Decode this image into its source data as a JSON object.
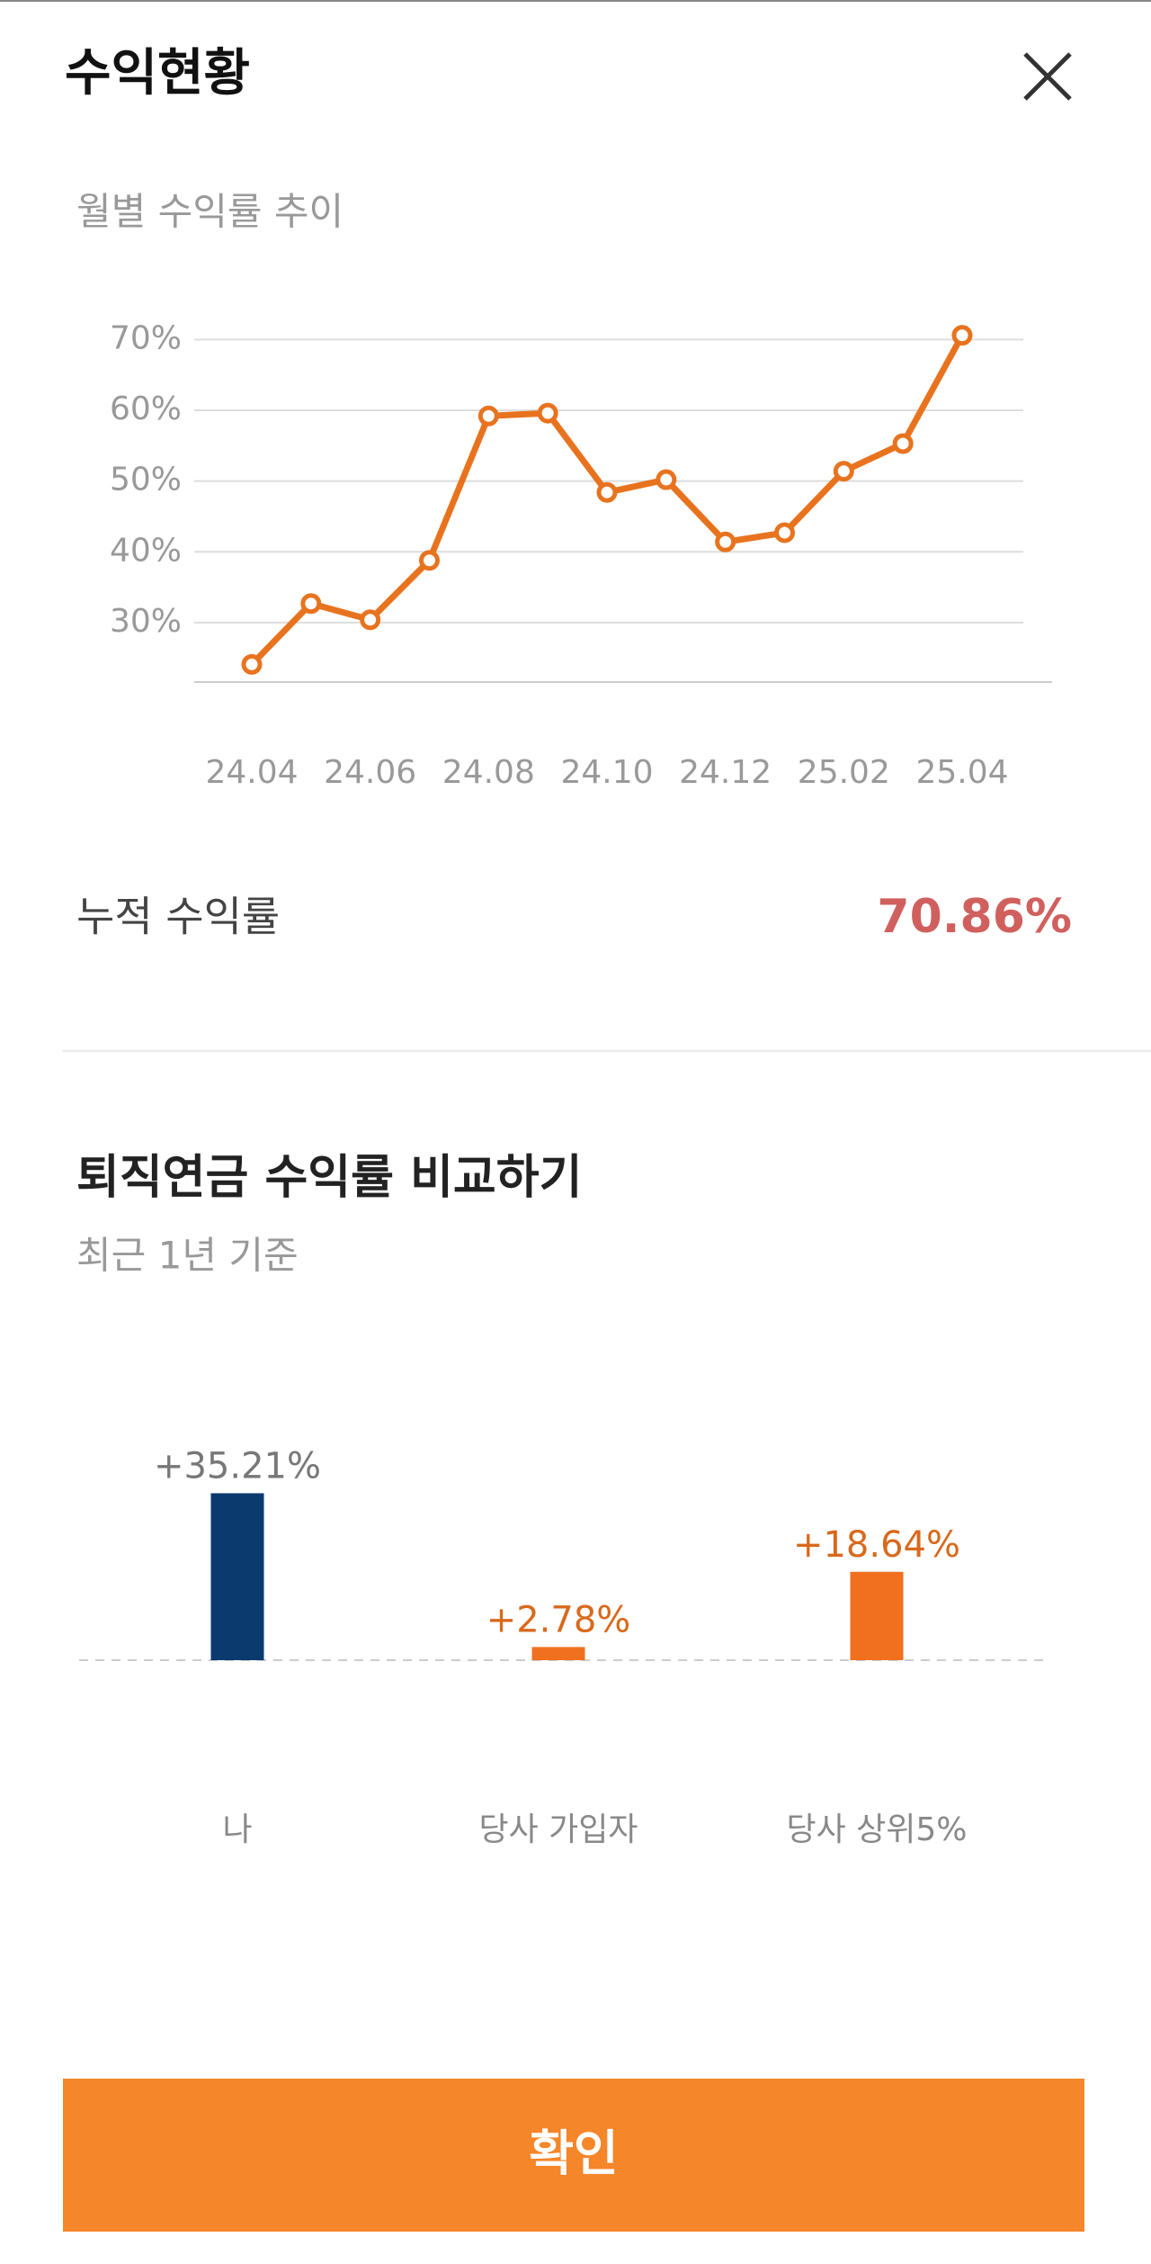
{
  "header": {
    "title": "수익현황"
  },
  "chart_data": [
    {
      "type": "line",
      "title": "월별 수익률 추이",
      "categories": [
        "24.04",
        null,
        "24.06",
        null,
        "24.08",
        null,
        "24.10",
        null,
        "24.12",
        null,
        "25.02",
        null,
        "25.04"
      ],
      "values": [
        24.1,
        32.7,
        30.4,
        38.8,
        59.2,
        59.6,
        48.4,
        50.2,
        41.4,
        42.7,
        51.4,
        55.3,
        70.6
      ],
      "color": "#e8731f",
      "ylim": [
        21.6,
        75
      ],
      "yticks": [
        {
          "value": 30,
          "label": "30%"
        },
        {
          "value": 40,
          "label": "40%"
        },
        {
          "value": 50,
          "label": "50%"
        },
        {
          "value": 60,
          "label": "60%"
        },
        {
          "value": 70,
          "label": "70%"
        }
      ],
      "grid": true
    },
    {
      "type": "bar",
      "title": "퇴직연금 수익률 비교하기",
      "subtitle": "최근 1년 기준",
      "categories": [
        "나",
        "당사 가입자",
        "당사 상위5%"
      ],
      "values": [
        35.21,
        2.78,
        18.64
      ],
      "value_labels": [
        "+35.21%",
        "+2.78%",
        "+18.64%"
      ],
      "colors": [
        "#0b3a6f",
        "#f07020",
        "#f07020"
      ],
      "label_colors": [
        "#777777",
        "#d8691c",
        "#d8691c"
      ]
    }
  ],
  "cumulative": {
    "label": "누적 수익률",
    "value": "70.86%"
  },
  "button": {
    "label": "확인"
  }
}
